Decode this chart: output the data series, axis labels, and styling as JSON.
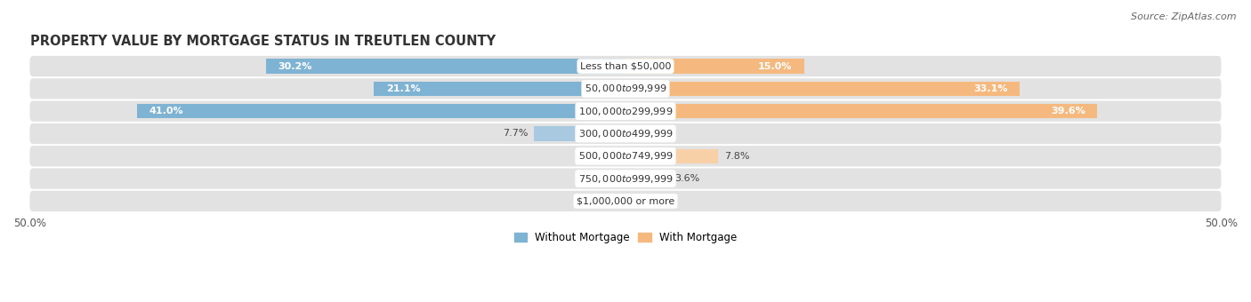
{
  "title": "PROPERTY VALUE BY MORTGAGE STATUS IN TREUTLEN COUNTY",
  "source": "Source: ZipAtlas.com",
  "categories": [
    "Less than $50,000",
    "$50,000 to $99,999",
    "$100,000 to $299,999",
    "$300,000 to $499,999",
    "$500,000 to $749,999",
    "$750,000 to $999,999",
    "$1,000,000 or more"
  ],
  "without_mortgage": [
    30.2,
    21.1,
    41.0,
    7.7,
    0.0,
    0.0,
    0.0
  ],
  "with_mortgage": [
    15.0,
    33.1,
    39.6,
    0.89,
    7.8,
    3.6,
    0.0
  ],
  "without_mortgage_label": "Without Mortgage",
  "with_mortgage_label": "With Mortgage",
  "color_without": "#7fb3d3",
  "color_with": "#f5b97f",
  "color_without_small": "#a8c9e0",
  "color_with_small": "#f8d0a8",
  "x_min": -50.0,
  "x_max": 50.0,
  "bg_color": "#ffffff",
  "row_bg": "#e2e2e2",
  "title_fontsize": 10.5,
  "source_fontsize": 8,
  "bar_label_fontsize": 8,
  "cat_label_fontsize": 8
}
